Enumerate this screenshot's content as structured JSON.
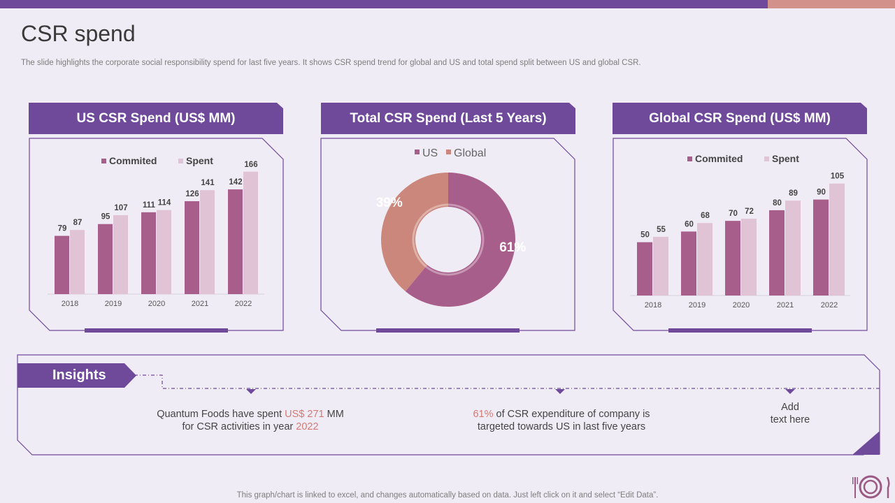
{
  "page": {
    "title": "CSR spend",
    "subtitle": "The slide highlights the corporate social responsibility spend for last five years. It shows CSR spend trend for global and US and total spend split between US and global CSR.",
    "footer": "This graph/chart is linked to excel,  and changes automatically based on data. Just left click on it and select “Edit Data”."
  },
  "colors": {
    "purple": "#6f4a9b",
    "committed": "#a85e8a",
    "spent": "#e0c3d5",
    "us": "#a85e8a",
    "global": "#cc877c",
    "highlight": "#d47a74"
  },
  "panels": {
    "us_title": "US CSR Spend (US$ MM)",
    "total_title": "Total CSR Spend (Last 5 Years)",
    "global_title": "Global CSR Spend (US$ MM)"
  },
  "chart_data": [
    {
      "id": "us",
      "type": "bar",
      "title": "US CSR Spend (US$ MM)",
      "categories": [
        "2018",
        "2019",
        "2020",
        "2021",
        "2022"
      ],
      "series": [
        {
          "name": "Commited",
          "values": [
            79,
            95,
            111,
            126,
            142
          ]
        },
        {
          "name": "Spent",
          "values": [
            87,
            107,
            114,
            141,
            166
          ]
        }
      ],
      "ylim": [
        0,
        180
      ]
    },
    {
      "id": "total",
      "type": "pie",
      "title": "Total CSR Spend (Last 5 Years)",
      "labels": [
        "US",
        "Global"
      ],
      "values": [
        61,
        39
      ],
      "value_labels": [
        "61%",
        "39%"
      ]
    },
    {
      "id": "global",
      "type": "bar",
      "title": "Global CSR Spend (US$ MM)",
      "categories": [
        "2018",
        "2019",
        "2020",
        "2021",
        "2022"
      ],
      "series": [
        {
          "name": "Commited",
          "values": [
            50,
            60,
            70,
            80,
            90
          ]
        },
        {
          "name": "Spent",
          "values": [
            55,
            68,
            72,
            89,
            105
          ]
        }
      ],
      "ylim": [
        0,
        114
      ]
    }
  ],
  "insights": {
    "label": "Insights",
    "item1": {
      "pre": "Quantum Foods have spent ",
      "amount": "US$ 271",
      "mid": " MM for CSR activities in year ",
      "year": "2022"
    },
    "item2": {
      "pct": "61%",
      "text": " of CSR expenditure of company is targeted towards US in last five years"
    },
    "item3": {
      "line1": "Add",
      "line2": "text here"
    }
  }
}
